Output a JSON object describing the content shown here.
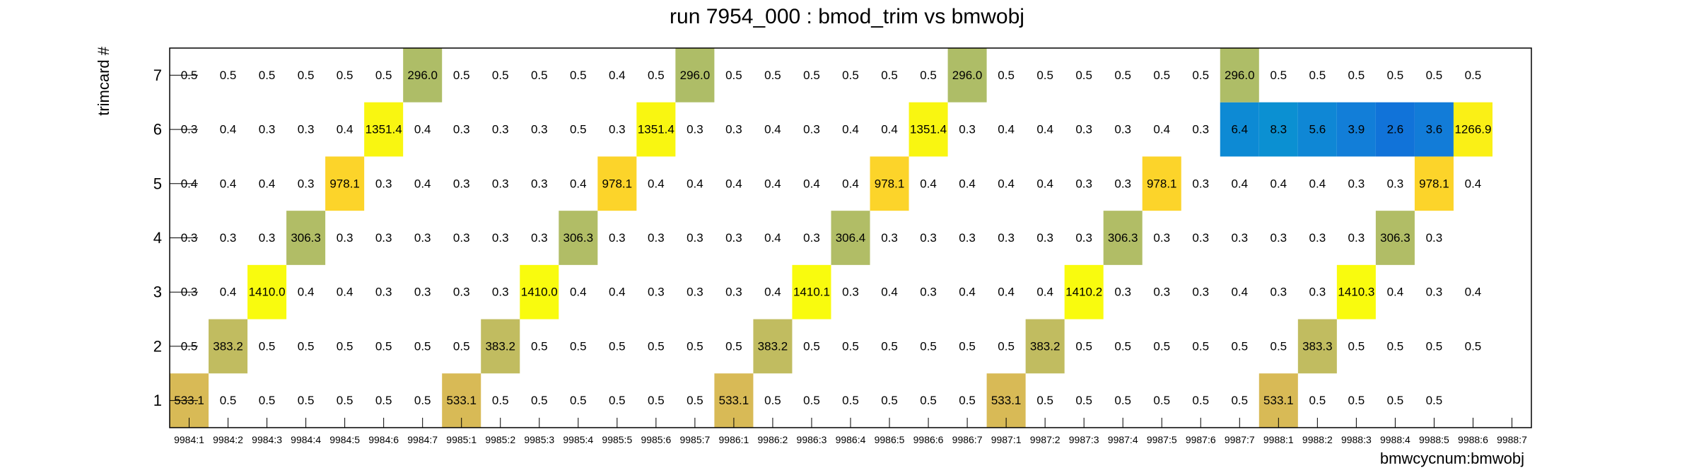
{
  "chart_data": {
    "type": "heatmap",
    "title": "run 7954_000 : bmod_trim vs bmwobj",
    "xlabel": "bmwcycnum:bmwobj",
    "ylabel": "trimcard #",
    "x_categories": [
      "9984:1",
      "9984:2",
      "9984:3",
      "9984:4",
      "9984:5",
      "9984:6",
      "9984:7",
      "9985:1",
      "9985:2",
      "9985:3",
      "9985:4",
      "9985:5",
      "9985:6",
      "9985:7",
      "9986:1",
      "9986:2",
      "9986:3",
      "9986:4",
      "9986:5",
      "9986:6",
      "9986:7",
      "9987:1",
      "9987:2",
      "9987:3",
      "9987:4",
      "9987:5",
      "9987:6",
      "9987:7",
      "9988:1",
      "9988:2",
      "9988:3",
      "9988:4",
      "9988:5",
      "9988:6",
      "9988:7"
    ],
    "y_categories": [
      "1",
      "2",
      "3",
      "4",
      "5",
      "6",
      "7"
    ],
    "values": [
      [
        "533.1",
        "0.5",
        "0.5",
        "0.5",
        "0.5",
        "0.5",
        "0.5",
        "533.1",
        "0.5",
        "0.5",
        "0.5",
        "0.5",
        "0.5",
        "0.5",
        "533.1",
        "0.5",
        "0.5",
        "0.5",
        "0.5",
        "0.5",
        "0.5",
        "533.1",
        "0.5",
        "0.5",
        "0.5",
        "0.5",
        "0.5",
        "0.5",
        "533.1",
        "0.5",
        "0.5",
        "0.5",
        "0.5",
        null,
        null
      ],
      [
        "0.5",
        "383.2",
        "0.5",
        "0.5",
        "0.5",
        "0.5",
        "0.5",
        "0.5",
        "383.2",
        "0.5",
        "0.5",
        "0.5",
        "0.5",
        "0.5",
        "0.5",
        "383.2",
        "0.5",
        "0.5",
        "0.5",
        "0.5",
        "0.5",
        "0.5",
        "383.2",
        "0.5",
        "0.5",
        "0.5",
        "0.5",
        "0.5",
        "0.5",
        "383.3",
        "0.5",
        "0.5",
        "0.5",
        "0.5",
        null
      ],
      [
        "0.3",
        "0.4",
        "1410.0",
        "0.4",
        "0.4",
        "0.3",
        "0.3",
        "0.3",
        "0.3",
        "1410.0",
        "0.4",
        "0.4",
        "0.3",
        "0.3",
        "0.3",
        "0.4",
        "1410.1",
        "0.3",
        "0.4",
        "0.3",
        "0.4",
        "0.4",
        "0.4",
        "1410.2",
        "0.3",
        "0.3",
        "0.3",
        "0.4",
        "0.3",
        "0.3",
        "1410.3",
        "0.4",
        "0.3",
        "0.4",
        null
      ],
      [
        "0.3",
        "0.3",
        "0.3",
        "306.3",
        "0.3",
        "0.3",
        "0.3",
        "0.3",
        "0.3",
        "0.3",
        "306.3",
        "0.3",
        "0.3",
        "0.3",
        "0.3",
        "0.4",
        "0.3",
        "306.4",
        "0.3",
        "0.3",
        "0.3",
        "0.3",
        "0.3",
        "0.3",
        "306.3",
        "0.3",
        "0.3",
        "0.3",
        "0.3",
        "0.3",
        "0.3",
        "306.3",
        "0.3",
        null,
        null
      ],
      [
        "0.4",
        "0.4",
        "0.4",
        "0.3",
        "978.1",
        "0.3",
        "0.4",
        "0.3",
        "0.3",
        "0.3",
        "0.4",
        "978.1",
        "0.4",
        "0.4",
        "0.4",
        "0.4",
        "0.4",
        "0.4",
        "978.1",
        "0.4",
        "0.4",
        "0.4",
        "0.4",
        "0.3",
        "0.3",
        "978.1",
        "0.3",
        "0.4",
        "0.4",
        "0.4",
        "0.3",
        "0.3",
        "978.1",
        "0.4",
        null
      ],
      [
        "0.3",
        "0.4",
        "0.3",
        "0.3",
        "0.4",
        "1351.4",
        "0.4",
        "0.3",
        "0.3",
        "0.3",
        "0.5",
        "0.3",
        "1351.4",
        "0.3",
        "0.3",
        "0.4",
        "0.3",
        "0.4",
        "0.4",
        "1351.4",
        "0.3",
        "0.4",
        "0.4",
        "0.3",
        "0.3",
        "0.4",
        "0.3",
        "6.4",
        "8.3",
        "5.6",
        "3.9",
        "2.6",
        "3.6",
        "1266.9",
        null
      ],
      [
        "0.5",
        "0.5",
        "0.5",
        "0.5",
        "0.5",
        "0.5",
        "296.0",
        "0.5",
        "0.5",
        "0.5",
        "0.5",
        "0.4",
        "0.5",
        "296.0",
        "0.5",
        "0.5",
        "0.5",
        "0.5",
        "0.5",
        "0.5",
        "296.0",
        "0.5",
        "0.5",
        "0.5",
        "0.5",
        "0.5",
        "0.5",
        "296.0",
        "0.5",
        "0.5",
        "0.5",
        "0.5",
        "0.5",
        "0.5",
        null
      ]
    ],
    "grid": false,
    "legend": false
  }
}
